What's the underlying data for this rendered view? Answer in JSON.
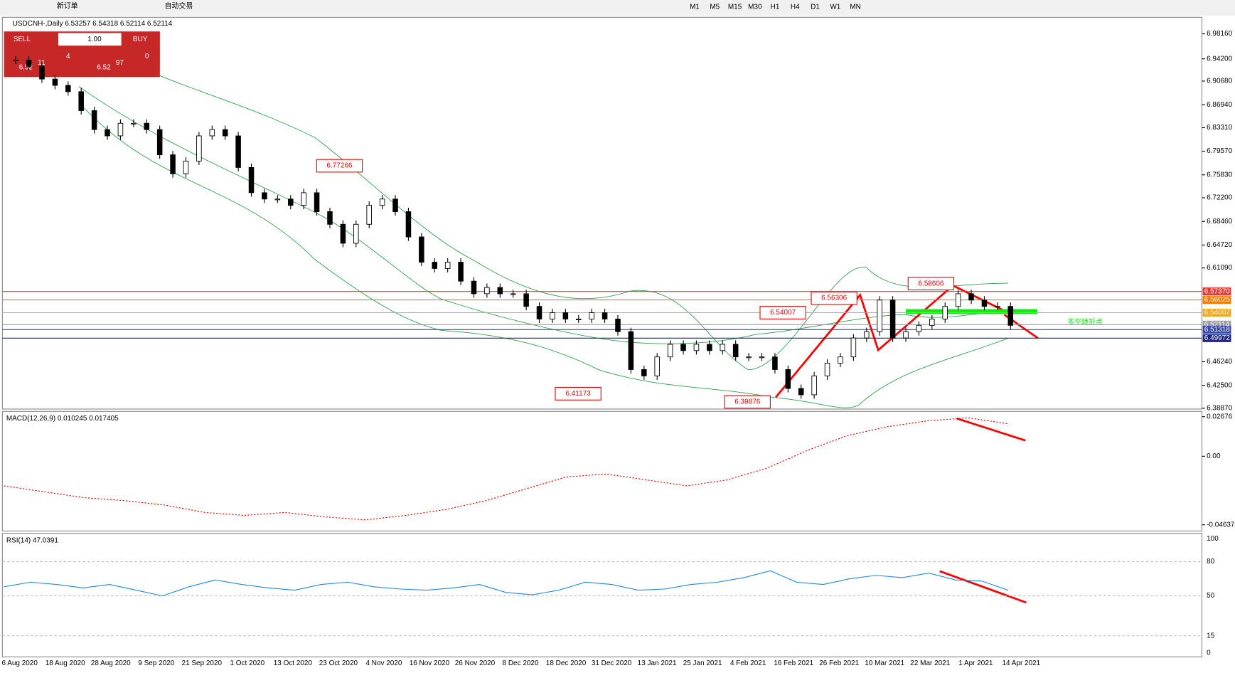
{
  "toolbar": {
    "new_order": "新订单",
    "auto_trading": "自动交易",
    "timeframes": [
      "M1",
      "M5",
      "M15",
      "M30",
      "H1",
      "H4",
      "D1",
      "W1",
      "MN"
    ]
  },
  "chart": {
    "title": "USDCNH-,Daily  6.53257 6.54318 6.52114 6.52114",
    "trade": {
      "sell": "SELL",
      "buy": "BUY",
      "lots": "1.00",
      "bid": [
        "6.52",
        "11",
        "4"
      ],
      "ask": [
        "6.52",
        "97",
        "0"
      ]
    },
    "price_ticks": [
      {
        "value": 6.9816,
        "label": "6.98160"
      },
      {
        "value": 6.942,
        "label": "6.94200"
      },
      {
        "value": 6.9068,
        "label": "6.90680"
      },
      {
        "value": 6.8694,
        "label": "6.86940"
      },
      {
        "value": 6.8331,
        "label": "6.83310"
      },
      {
        "value": 6.7957,
        "label": "6.79570"
      },
      {
        "value": 6.7583,
        "label": "6.75830"
      },
      {
        "value": 6.722,
        "label": "6.72200"
      },
      {
        "value": 6.6846,
        "label": "6.68460"
      },
      {
        "value": 6.6472,
        "label": "6.64720"
      },
      {
        "value": 6.6109,
        "label": "6.61090"
      },
      {
        "value": 6.4624,
        "label": "6.46240"
      },
      {
        "value": 6.425,
        "label": "6.42500"
      },
      {
        "value": 6.3887,
        "label": "6.38870"
      }
    ],
    "levels": [
      {
        "value": 6.5737,
        "label": "6.57370",
        "color": "#e53935"
      },
      {
        "value": 6.56025,
        "label": "6.56025",
        "color": "#f57c00"
      },
      {
        "value": 6.54007,
        "label": "6.54007",
        "color": "#f5a623"
      },
      {
        "value": 6.52114,
        "label": "6.52114",
        "color": "#9e9e9e"
      },
      {
        "value": 6.51318,
        "label": "6.51318",
        "color": "#3949ab"
      },
      {
        "value": 6.49972,
        "label": "6.49972",
        "color": "#1a237e"
      }
    ],
    "annotations": [
      6.77266,
      6.41173,
      6.39876,
      6.54007,
      6.56306,
      6.58606
    ],
    "note": "多空转折点",
    "dates": [
      "6 Aug 2020",
      "18 Aug 2020",
      "28 Aug 2020",
      "9 Sep 2020",
      "21 Sep 2020",
      "1 Oct 2020",
      "13 Oct 2020",
      "23 Oct 2020",
      "4 Nov 2020",
      "16 Nov 2020",
      "26 Nov 2020",
      "8 Dec 2020",
      "18 Dec 2020",
      "31 Dec 2020",
      "13 Jan 2021",
      "25 Jan 2021",
      "4 Feb 2021",
      "16 Feb 2021",
      "26 Feb 2021",
      "10 Mar 2021",
      "22 Mar 2021",
      "1 Apr 2021",
      "14 Apr 2021"
    ],
    "closes": [
      6.94,
      6.93,
      6.91,
      6.9,
      6.89,
      6.86,
      6.83,
      6.82,
      6.84,
      6.84,
      6.83,
      6.79,
      6.76,
      6.78,
      6.82,
      6.83,
      6.82,
      6.77,
      6.73,
      6.72,
      6.72,
      6.71,
      6.73,
      6.7,
      6.68,
      6.65,
      6.68,
      6.71,
      6.72,
      6.7,
      6.66,
      6.62,
      6.61,
      6.62,
      6.59,
      6.57,
      6.58,
      6.57,
      6.57,
      6.55,
      6.53,
      6.54,
      6.53,
      6.53,
      6.54,
      6.53,
      6.51,
      6.45,
      6.44,
      6.47,
      6.49,
      6.48,
      6.49,
      6.48,
      6.49,
      6.47,
      6.47,
      6.47,
      6.45,
      6.42,
      6.41,
      6.44,
      6.46,
      6.47,
      6.5,
      6.51,
      6.56,
      6.5,
      6.51,
      6.52,
      6.53,
      6.55,
      6.57,
      6.56,
      6.55,
      6.55,
      6.52
    ]
  },
  "macd": {
    "label": "MACD(12,26,9) 0.010245 0.017405",
    "ticks": [
      0.02676,
      {
        "value": 0,
        "label": "0.00"
      },
      -0.046374
    ],
    "signal": [
      -0.02,
      -0.024,
      -0.028,
      -0.03,
      -0.033,
      -0.038,
      -0.04,
      -0.038,
      -0.041,
      -0.043,
      -0.04,
      -0.036,
      -0.03,
      -0.022,
      -0.014,
      -0.012,
      -0.016,
      -0.02,
      -0.016,
      -0.008,
      0.004,
      0.014,
      0.02,
      0.024,
      0.026,
      0.022
    ]
  },
  "rsi": {
    "label": "RSI(14) 47.0391",
    "ticks": [
      100,
      80,
      50,
      15,
      0
    ],
    "values": [
      58,
      62,
      60,
      57,
      60,
      55,
      50,
      58,
      64,
      60,
      57,
      55,
      60,
      62,
      58,
      56,
      55,
      57,
      60,
      53,
      51,
      55,
      62,
      60,
      55,
      56,
      60,
      62,
      66,
      72,
      62,
      60,
      65,
      68,
      66,
      70,
      64,
      63,
      55
    ]
  }
}
